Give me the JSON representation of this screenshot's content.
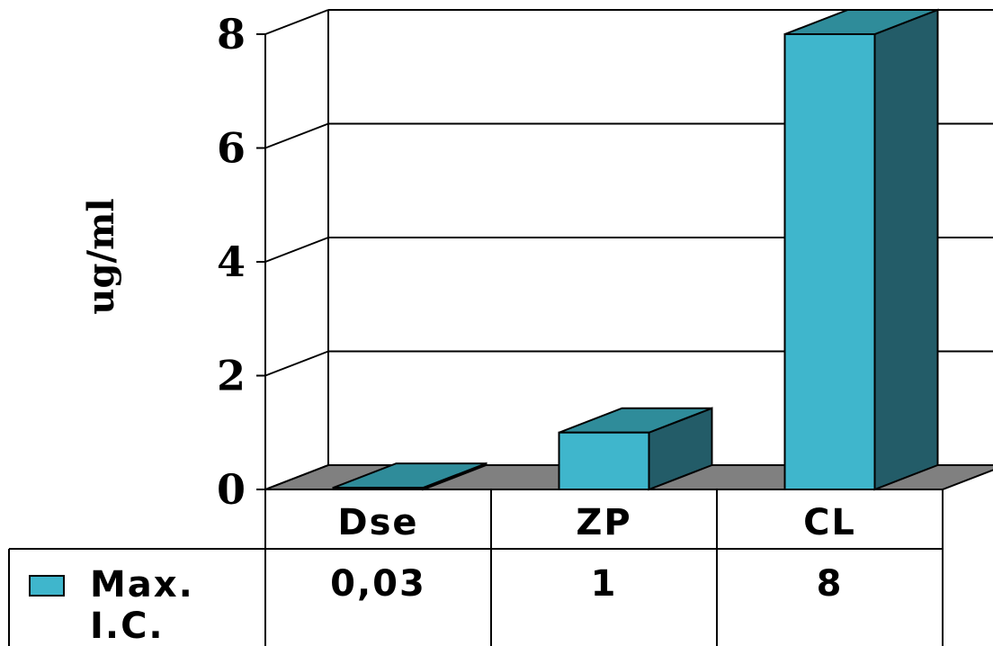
{
  "chart_data": {
    "type": "bar",
    "view": "3d",
    "categories": [
      "Dse",
      "ZP",
      "CL"
    ],
    "series": [
      {
        "name": "Max. I.C.",
        "values": [
          0.03,
          1,
          8
        ],
        "color": "#3fb6cc"
      }
    ],
    "ylabel": "ug/ml",
    "ylim": [
      0,
      8
    ],
    "yticks": [
      "0",
      "2",
      "4",
      "6",
      "8"
    ],
    "grid": true,
    "legend": "data-table-left",
    "data_table": {
      "legend_label_lines": [
        "Max.",
        "I.C."
      ],
      "values": [
        "0,03",
        "1",
        "8"
      ]
    },
    "colors": {
      "bar_front": "#3fb6cc",
      "bar_top": "#2f8c9a",
      "bar_side": "#235c68",
      "floor": "#808080",
      "grid": "#000000"
    }
  }
}
